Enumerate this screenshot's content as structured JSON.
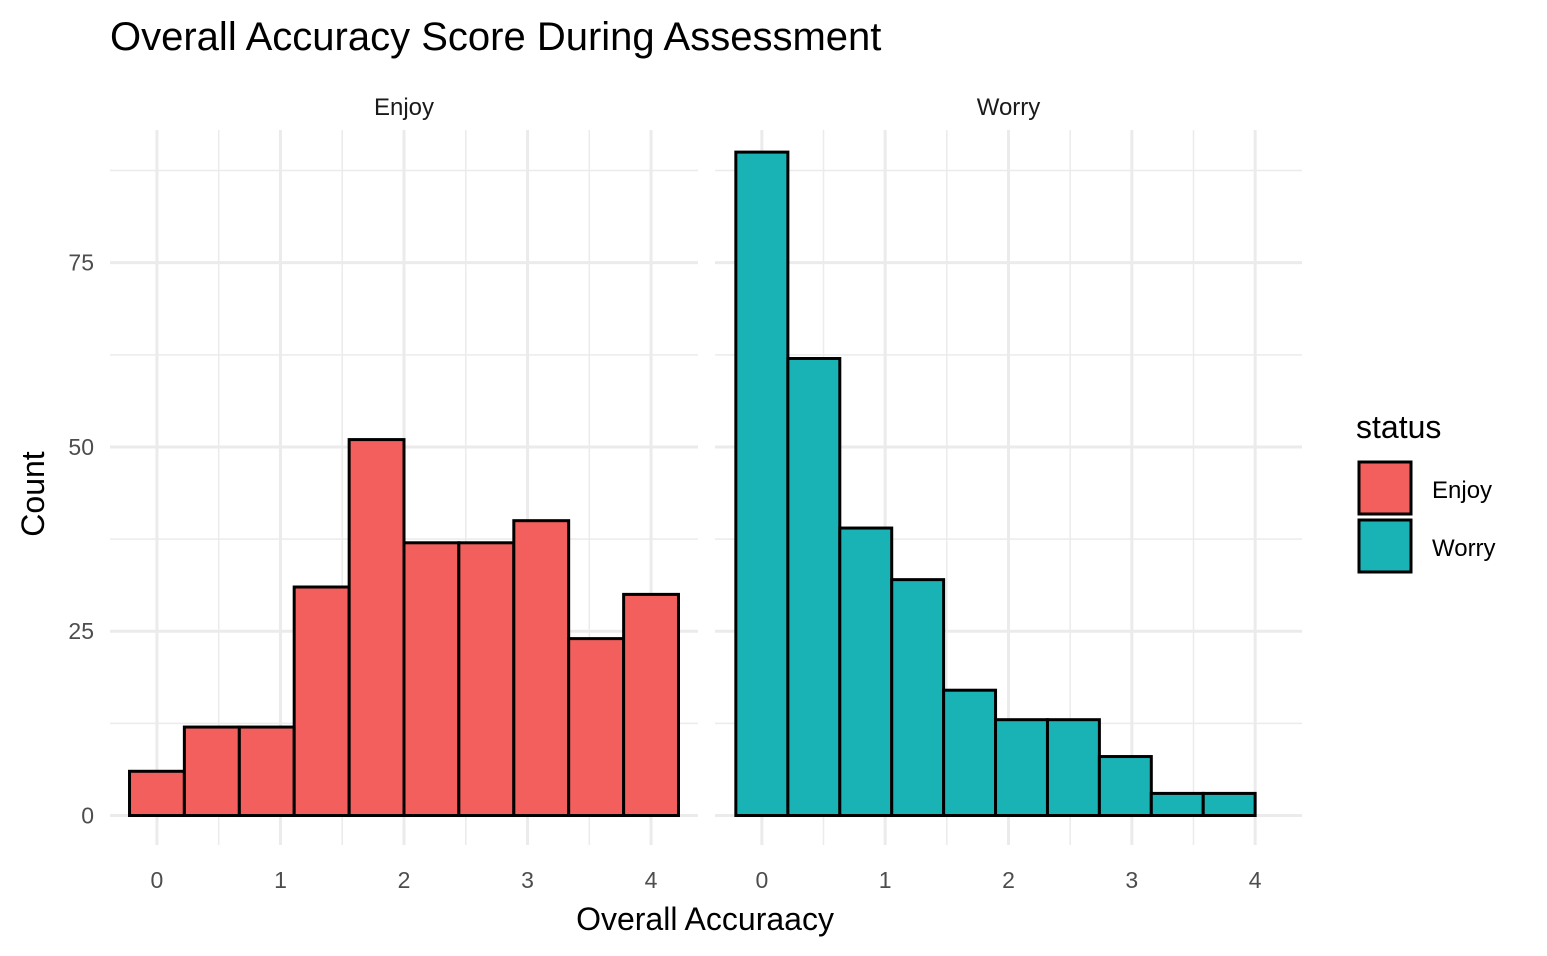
{
  "chart_data": {
    "type": "bar",
    "title": "Overall Accuracy Score During Assessment",
    "xlabel": "Overall Accuraacy",
    "ylabel": "Count",
    "grid": true,
    "legend": {
      "title": "status",
      "placement": "right",
      "entries": [
        {
          "label": "Enjoy",
          "color": "#F25F5C"
        },
        {
          "label": "Worry",
          "color": "#19B3B6"
        }
      ]
    },
    "y_ticks": [
      "0",
      "25",
      "50",
      "75"
    ],
    "ylim": [
      -4,
      93
    ],
    "panels": [
      {
        "strip": "Enjoy",
        "color": "#F25F5C",
        "xlim": [
          -0.38,
          4.38
        ],
        "x_ticks": [
          "0",
          "1",
          "2",
          "3",
          "4"
        ],
        "bin_width": 0.444,
        "bins": [
          {
            "x0": -0.222,
            "x1": 0.222,
            "value": 6
          },
          {
            "x0": 0.222,
            "x1": 0.667,
            "value": 12
          },
          {
            "x0": 0.667,
            "x1": 1.111,
            "value": 12
          },
          {
            "x0": 1.111,
            "x1": 1.556,
            "value": 31
          },
          {
            "x0": 1.556,
            "x1": 2.0,
            "value": 51
          },
          {
            "x0": 2.0,
            "x1": 2.444,
            "value": 37
          },
          {
            "x0": 2.444,
            "x1": 2.889,
            "value": 37
          },
          {
            "x0": 2.889,
            "x1": 3.333,
            "value": 40
          },
          {
            "x0": 3.333,
            "x1": 3.778,
            "value": 24
          },
          {
            "x0": 3.778,
            "x1": 4.222,
            "value": 30
          }
        ]
      },
      {
        "strip": "Worry",
        "color": "#19B3B6",
        "xlim": [
          -0.38,
          4.38
        ],
        "x_ticks": [
          "0",
          "1",
          "2",
          "3",
          "4"
        ],
        "bin_width": 0.421,
        "bins": [
          {
            "x0": -0.211,
            "x1": 0.211,
            "value": 90
          },
          {
            "x0": 0.211,
            "x1": 0.632,
            "value": 62
          },
          {
            "x0": 0.632,
            "x1": 1.053,
            "value": 39
          },
          {
            "x0": 1.053,
            "x1": 1.474,
            "value": 32
          },
          {
            "x0": 1.474,
            "x1": 1.895,
            "value": 17
          },
          {
            "x0": 1.895,
            "x1": 2.316,
            "value": 13
          },
          {
            "x0": 2.316,
            "x1": 2.737,
            "value": 13
          },
          {
            "x0": 2.737,
            "x1": 3.158,
            "value": 8
          },
          {
            "x0": 3.158,
            "x1": 3.579,
            "value": 3
          },
          {
            "x0": 3.579,
            "x1": 4.0,
            "value": 3
          }
        ]
      }
    ]
  }
}
